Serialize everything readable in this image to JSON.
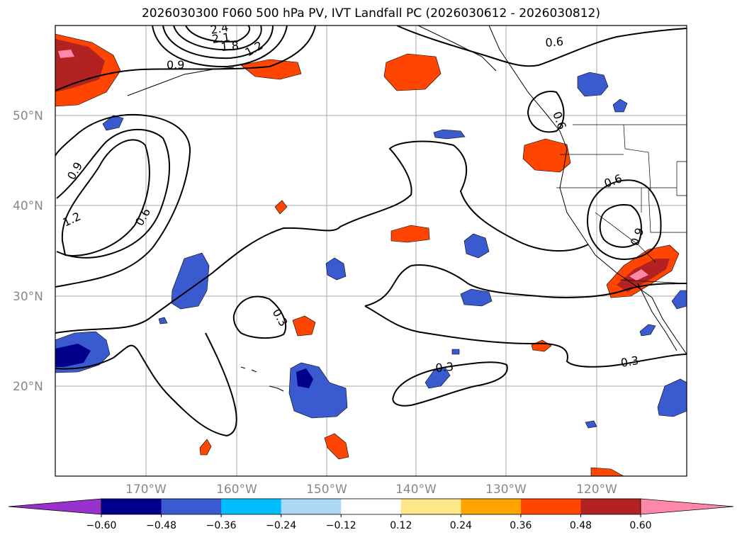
{
  "title": "2026030300 F060 500 hPa PV, IVT Landfall PC (2026030612 - 2026030812)",
  "map": {
    "lat_labels": [
      "50°N",
      "40°N",
      "30°N",
      "20°N"
    ],
    "lon_labels": [
      "170°W",
      "160°W",
      "150°W",
      "140°W",
      "130°W",
      "120°W"
    ]
  },
  "contour_labels": [
    "2.4",
    "2.1",
    "1.8",
    "1.2",
    "0.9",
    "0.9",
    "1.2",
    "0.6",
    "0.6",
    "0.6",
    "0.6",
    "0.9",
    "0.3",
    "0.3",
    "0.3"
  ],
  "colorbar": {
    "ticks": [
      "−0.60",
      "−0.48",
      "−0.36",
      "−0.24",
      "−0.12",
      "0.12",
      "0.24",
      "0.36",
      "0.48",
      "0.60"
    ],
    "colors": [
      "#9932cc",
      "#00008b",
      "#3a5bd0",
      "#00bfff",
      "#add8f5",
      "#ffffff",
      "#ffe88a",
      "#ffa500",
      "#ff4500",
      "#b22222",
      "#ff88aa"
    ]
  }
}
